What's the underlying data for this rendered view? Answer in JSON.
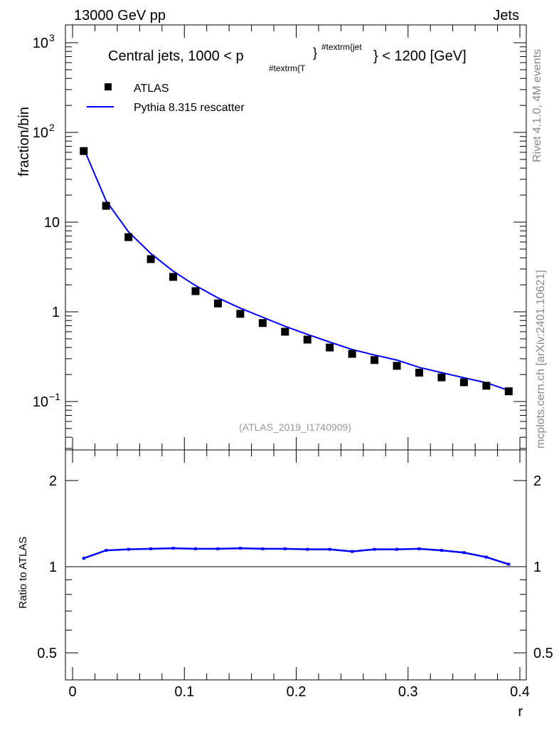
{
  "header": {
    "energy_label": "13000 GeV pp",
    "process_label": "Jets"
  },
  "side_labels": {
    "rivet": "Rivet 4.1.0,  4M events",
    "source": "mcplots.cern.ch [arXiv:2401.10621]"
  },
  "watermark": "(ATLAS_2019_I1740909)",
  "colors": {
    "data": "#000000",
    "mc": "#0000ff"
  },
  "chart_data": [
    {
      "type": "scatter",
      "title": {
        "main": "Central jets, 1000 < p",
        "sub": "#textrm{T",
        "sup": "#textrm{jet",
        "tail": "} < 1200 [GeV]",
        "brace": "}"
      },
      "xlabel": "r",
      "ylabel": "fraction/bin",
      "yscale": "log",
      "ylim": [
        0.029,
        1600
      ],
      "xlim": [
        -0.016,
        0.4146
      ],
      "ytick_labels": [
        {
          "v": 1000,
          "base": "10",
          "exp": "3"
        },
        {
          "v": 100,
          "base": "10",
          "exp": "2"
        },
        {
          "v": 10,
          "base": "10",
          "exp": ""
        },
        {
          "v": 1,
          "base": "1",
          "exp": ""
        },
        {
          "v": 0.1,
          "base": "10",
          "exp": "−1"
        }
      ],
      "legend": {
        "placement": "top-left",
        "entries": [
          "ATLAS",
          "Pythia 8.315 rescatter"
        ]
      },
      "x": [
        0.01,
        0.03,
        0.05,
        0.07,
        0.09,
        0.11,
        0.13,
        0.15,
        0.17,
        0.19,
        0.21,
        0.23,
        0.25,
        0.27,
        0.29,
        0.31,
        0.33,
        0.35,
        0.37,
        0.39
      ],
      "series": [
        {
          "name": "ATLAS",
          "values": [
            62,
            15.2,
            6.8,
            3.87,
            2.45,
            1.7,
            1.24,
            0.95,
            0.75,
            0.6,
            0.49,
            0.4,
            0.34,
            0.29,
            0.25,
            0.21,
            0.186,
            0.164,
            0.15,
            0.13
          ]
        },
        {
          "name": "Pythia 8.315 rescatter",
          "values": [
            66.3,
            17.3,
            7.8,
            4.47,
            2.84,
            1.96,
            1.43,
            1.1,
            0.87,
            0.69,
            0.56,
            0.46,
            0.38,
            0.33,
            0.29,
            0.24,
            0.21,
            0.184,
            0.162,
            0.133
          ]
        }
      ]
    },
    {
      "type": "line",
      "ylabel": "Ratio to ATLAS",
      "xlabel": "r",
      "yscale": "log",
      "ylim": [
        0.4,
        2.56
      ],
      "ytick_labels": [
        "2",
        "1",
        "0.5"
      ],
      "ytick_values": [
        2,
        1,
        0.5
      ],
      "xtick_labels": [
        "0",
        "0.1",
        "0.2",
        "0.3",
        "0.4"
      ],
      "xtick_values": [
        0,
        0.1,
        0.2,
        0.3,
        0.4
      ],
      "x": [
        0.01,
        0.03,
        0.05,
        0.07,
        0.09,
        0.11,
        0.13,
        0.15,
        0.17,
        0.19,
        0.21,
        0.23,
        0.25,
        0.27,
        0.29,
        0.31,
        0.33,
        0.35,
        0.37,
        0.39
      ],
      "series": [
        {
          "name": "Pythia 8.315 rescatter / ATLAS",
          "values": [
            1.07,
            1.14,
            1.15,
            1.155,
            1.16,
            1.155,
            1.155,
            1.16,
            1.155,
            1.155,
            1.15,
            1.15,
            1.13,
            1.15,
            1.15,
            1.155,
            1.14,
            1.12,
            1.08,
            1.02
          ]
        }
      ]
    }
  ]
}
